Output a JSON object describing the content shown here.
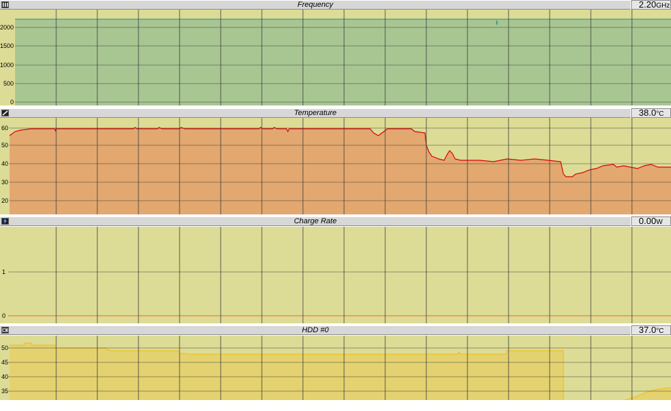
{
  "panels": [
    {
      "key": "frequency",
      "title": "Frequency",
      "value": "2.20",
      "unit": "GHz",
      "icon": "frequency-icon",
      "y_ticks": [
        "2000",
        "1500",
        "1000",
        "500",
        "0"
      ]
    },
    {
      "key": "temperature",
      "title": "Temperature",
      "value": "38.0",
      "unit": "°C",
      "icon": "thermometer-icon",
      "y_ticks": [
        "60",
        "50",
        "40",
        "30",
        "20"
      ]
    },
    {
      "key": "charge_rate",
      "title": "Charge Rate",
      "value": "0.00",
      "unit": "W",
      "icon": "battery-charge-icon",
      "y_ticks": [
        "1",
        "0"
      ]
    },
    {
      "key": "hdd0",
      "title": "HDD #0",
      "value": "37.0",
      "unit": "°C",
      "icon": "hard-drive-icon",
      "y_ticks": [
        "50",
        "45",
        "40",
        "35"
      ]
    }
  ],
  "colors": {
    "plot_background": "#dcdc96",
    "grid": "#3a3a3a",
    "frequency_fill": "#a8c692",
    "frequency_line": "#2a8a8a",
    "temperature_fill": "#e2a870",
    "temperature_line": "#e00000",
    "charge_line": "#f08030",
    "hdd_fill": "#e4d270",
    "hdd_line": "#f0c020"
  }
}
